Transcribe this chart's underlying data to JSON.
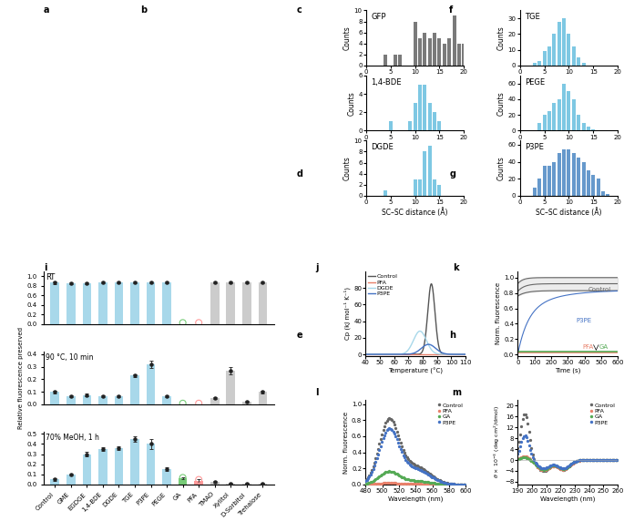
{
  "panel_c_title": "GFP",
  "panel_c_color": "#7a7a7a",
  "panel_c_bins": [
    4,
    5,
    6,
    7,
    8,
    9,
    10,
    11,
    12,
    13,
    14,
    15,
    16,
    17,
    18,
    19,
    20
  ],
  "panel_c_counts": [
    2,
    0,
    2,
    2,
    0,
    0,
    8,
    5,
    6,
    5,
    6,
    5,
    4,
    5,
    9,
    4,
    4
  ],
  "panel_d_title": "1,4-BDE",
  "panel_d_color": "#7ec8e3",
  "panel_d_bins": [
    4,
    5,
    6,
    7,
    8,
    9,
    10,
    11,
    12,
    13,
    14,
    15,
    16,
    17,
    18,
    19,
    20
  ],
  "panel_d_counts": [
    0,
    1,
    0,
    0,
    0,
    1,
    3,
    5,
    5,
    3,
    2,
    1,
    0,
    0,
    0,
    0,
    0
  ],
  "panel_e_title": "DGDE",
  "panel_e_color": "#7ec8e3",
  "panel_e_bins": [
    2,
    3,
    4,
    5,
    6,
    7,
    8,
    9,
    10,
    11,
    12,
    13,
    14,
    15,
    16,
    17,
    18,
    19,
    20
  ],
  "panel_e_counts": [
    0,
    0,
    1,
    0,
    0,
    0,
    0,
    0,
    3,
    3,
    8,
    9,
    3,
    2,
    0,
    0,
    0,
    0,
    0
  ],
  "panel_f_title": "TGE",
  "panel_f_color": "#7ec8e3",
  "panel_f_bins": [
    2,
    3,
    4,
    5,
    6,
    7,
    8,
    9,
    10,
    11,
    12,
    13,
    14,
    15,
    16,
    17,
    18,
    19,
    20
  ],
  "panel_f_counts": [
    0,
    2,
    3,
    9,
    12,
    20,
    28,
    30,
    20,
    12,
    5,
    2,
    0,
    0,
    0,
    0,
    0,
    0,
    0
  ],
  "panel_g_title": "PEGE",
  "panel_g_color": "#7ec8e3",
  "panel_g_bins": [
    2,
    3,
    4,
    5,
    6,
    7,
    8,
    9,
    10,
    11,
    12,
    13,
    14,
    15,
    16,
    17,
    18,
    19,
    20
  ],
  "panel_g_counts": [
    0,
    0,
    10,
    20,
    25,
    35,
    40,
    60,
    50,
    40,
    20,
    10,
    5,
    2,
    0,
    0,
    0,
    0,
    0
  ],
  "panel_h_title": "P3PE",
  "panel_h_color": "#6699cc",
  "panel_h_bins": [
    2,
    3,
    4,
    5,
    6,
    7,
    8,
    9,
    10,
    11,
    12,
    13,
    14,
    15,
    16,
    17,
    18,
    19,
    20
  ],
  "panel_h_counts": [
    0,
    10,
    20,
    35,
    35,
    40,
    50,
    55,
    55,
    50,
    45,
    40,
    30,
    25,
    20,
    5,
    2,
    0,
    0
  ],
  "bar_categories": [
    "Control",
    "GME",
    "EGDGE",
    "1,4-BDE",
    "DGDE",
    "TGE",
    "P3PE",
    "PEGE",
    "GA",
    "PFA",
    "TMAO",
    "Xylitol",
    "D-Sorbitol",
    "Trehalose"
  ],
  "bar_values_rt": [
    0.87,
    0.85,
    0.85,
    0.88,
    0.88,
    0.88,
    0.88,
    0.88,
    0.0,
    0.0,
    0.88,
    0.88,
    0.88,
    0.88
  ],
  "bar_err_rt": [
    0.03,
    0.02,
    0.02,
    0.02,
    0.02,
    0.02,
    0.02,
    0.02,
    0.0,
    0.0,
    0.02,
    0.02,
    0.02,
    0.02
  ],
  "bar_values_90": [
    0.1,
    0.065,
    0.075,
    0.065,
    0.065,
    0.23,
    0.32,
    0.065,
    0.0,
    0.0,
    0.05,
    0.27,
    0.02,
    0.1
  ],
  "bar_err_90": [
    0.01,
    0.01,
    0.01,
    0.01,
    0.01,
    0.01,
    0.03,
    0.01,
    0.005,
    0.005,
    0.01,
    0.03,
    0.005,
    0.01
  ],
  "bar_values_meoh": [
    0.05,
    0.1,
    0.3,
    0.35,
    0.36,
    0.45,
    0.4,
    0.15,
    0.06,
    0.04,
    0.03,
    0.01,
    0.01,
    0.01
  ],
  "bar_err_meoh": [
    0.01,
    0.01,
    0.02,
    0.02,
    0.02,
    0.03,
    0.05,
    0.02,
    0.01,
    0.01,
    0.01,
    0.005,
    0.005,
    0.005
  ],
  "bar_color_blue": "#a8d8ea",
  "bar_color_gray": "#cccccc",
  "panel_j_colors": [
    "#555555",
    "#e8806a",
    "#a8d8ea",
    "#4472c4"
  ],
  "panel_j_labels": [
    "Control",
    "PFA",
    "DGDE",
    "P3PE"
  ],
  "panel_k_colors": [
    "#666666",
    "#4472c4",
    "#55aa55",
    "#e8806a"
  ],
  "panel_k_labels": [
    "Control",
    "P3PE",
    "GA",
    "PFA"
  ],
  "panel_l_colors": [
    "#666666",
    "#e8806a",
    "#55aa55",
    "#4472c4"
  ],
  "panel_l_labels": [
    "Control",
    "PFA",
    "GA",
    "P3PE"
  ],
  "panel_m_colors": [
    "#666666",
    "#e8806a",
    "#55aa55",
    "#4472c4"
  ],
  "panel_m_labels": [
    "Control",
    "PFA",
    "GA",
    "P3PE"
  ],
  "bg_color": "#ffffff"
}
